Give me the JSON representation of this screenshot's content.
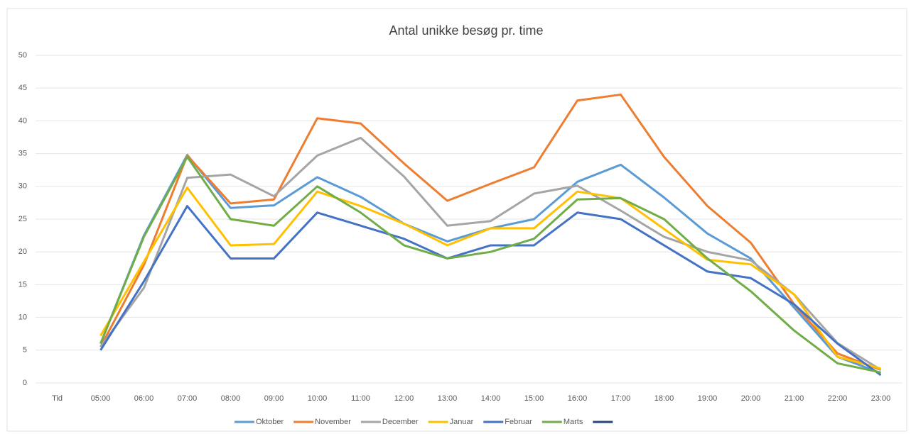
{
  "chart_data": {
    "type": "line",
    "title": "Antal unikke besøg pr. time",
    "categories": [
      "Tid",
      "05:00",
      "06:00",
      "07:00",
      "08:00",
      "09:00",
      "10:00",
      "11:00",
      "12:00",
      "13:00",
      "14:00",
      "15:00",
      "16:00",
      "17:00",
      "18:00",
      "19:00",
      "20:00",
      "21:00",
      "22:00",
      "23:00"
    ],
    "series": [
      {
        "name": "Oktober",
        "color": "#5b9bd5",
        "values": [
          null,
          6,
          22.5,
          34.8,
          26.7,
          27.1,
          31.4,
          28.4,
          24.3,
          21.6,
          23.6,
          25,
          30.7,
          33.3,
          28.3,
          22.8,
          19,
          11.5,
          4,
          1.5
        ]
      },
      {
        "name": "November",
        "color": "#ed7d31",
        "values": [
          null,
          5.5,
          18,
          34.7,
          27.4,
          28,
          40.4,
          39.6,
          33.5,
          27.8,
          30.4,
          32.9,
          43.1,
          44,
          34.5,
          27,
          21.4,
          12,
          4.5,
          2
        ]
      },
      {
        "name": "December",
        "color": "#a5a5a5",
        "values": [
          null,
          5.5,
          14.5,
          31.3,
          31.8,
          28.5,
          34.7,
          37.4,
          31.5,
          24,
          24.7,
          28.9,
          30.1,
          26.3,
          22.3,
          20,
          18.7,
          13.5,
          6.1,
          2
        ]
      },
      {
        "name": "Januar",
        "color": "#ffc000",
        "values": [
          null,
          7.2,
          18.5,
          29.8,
          21,
          21.2,
          29.2,
          27,
          24.3,
          21,
          23.6,
          23.6,
          29.2,
          28.2,
          23.5,
          18.8,
          18.1,
          13.5,
          4,
          2.2
        ]
      },
      {
        "name": "Februar",
        "color": "#4472c4",
        "values": [
          null,
          5,
          15.5,
          27,
          19,
          19,
          26,
          24,
          22,
          19,
          21,
          21,
          26,
          25,
          21,
          17,
          16,
          12,
          6,
          1.2
        ]
      },
      {
        "name": "Marts",
        "color": "#70ad47",
        "values": [
          null,
          6,
          22.3,
          34.5,
          25,
          24,
          30,
          26,
          21,
          19,
          20,
          22,
          28,
          28.2,
          25,
          19,
          14,
          8,
          3,
          1.6
        ]
      },
      {
        "color": "#264478",
        "values": [
          null,
          null,
          null,
          null,
          null,
          null,
          null,
          null,
          null,
          null,
          null,
          null,
          null,
          null,
          null,
          null,
          null,
          null,
          null,
          null
        ]
      }
    ],
    "ylim": [
      0,
      50
    ],
    "yticks": [
      0,
      5,
      10,
      15,
      20,
      25,
      30,
      35,
      40,
      45,
      50
    ],
    "grid": true,
    "legend": "bottom"
  }
}
